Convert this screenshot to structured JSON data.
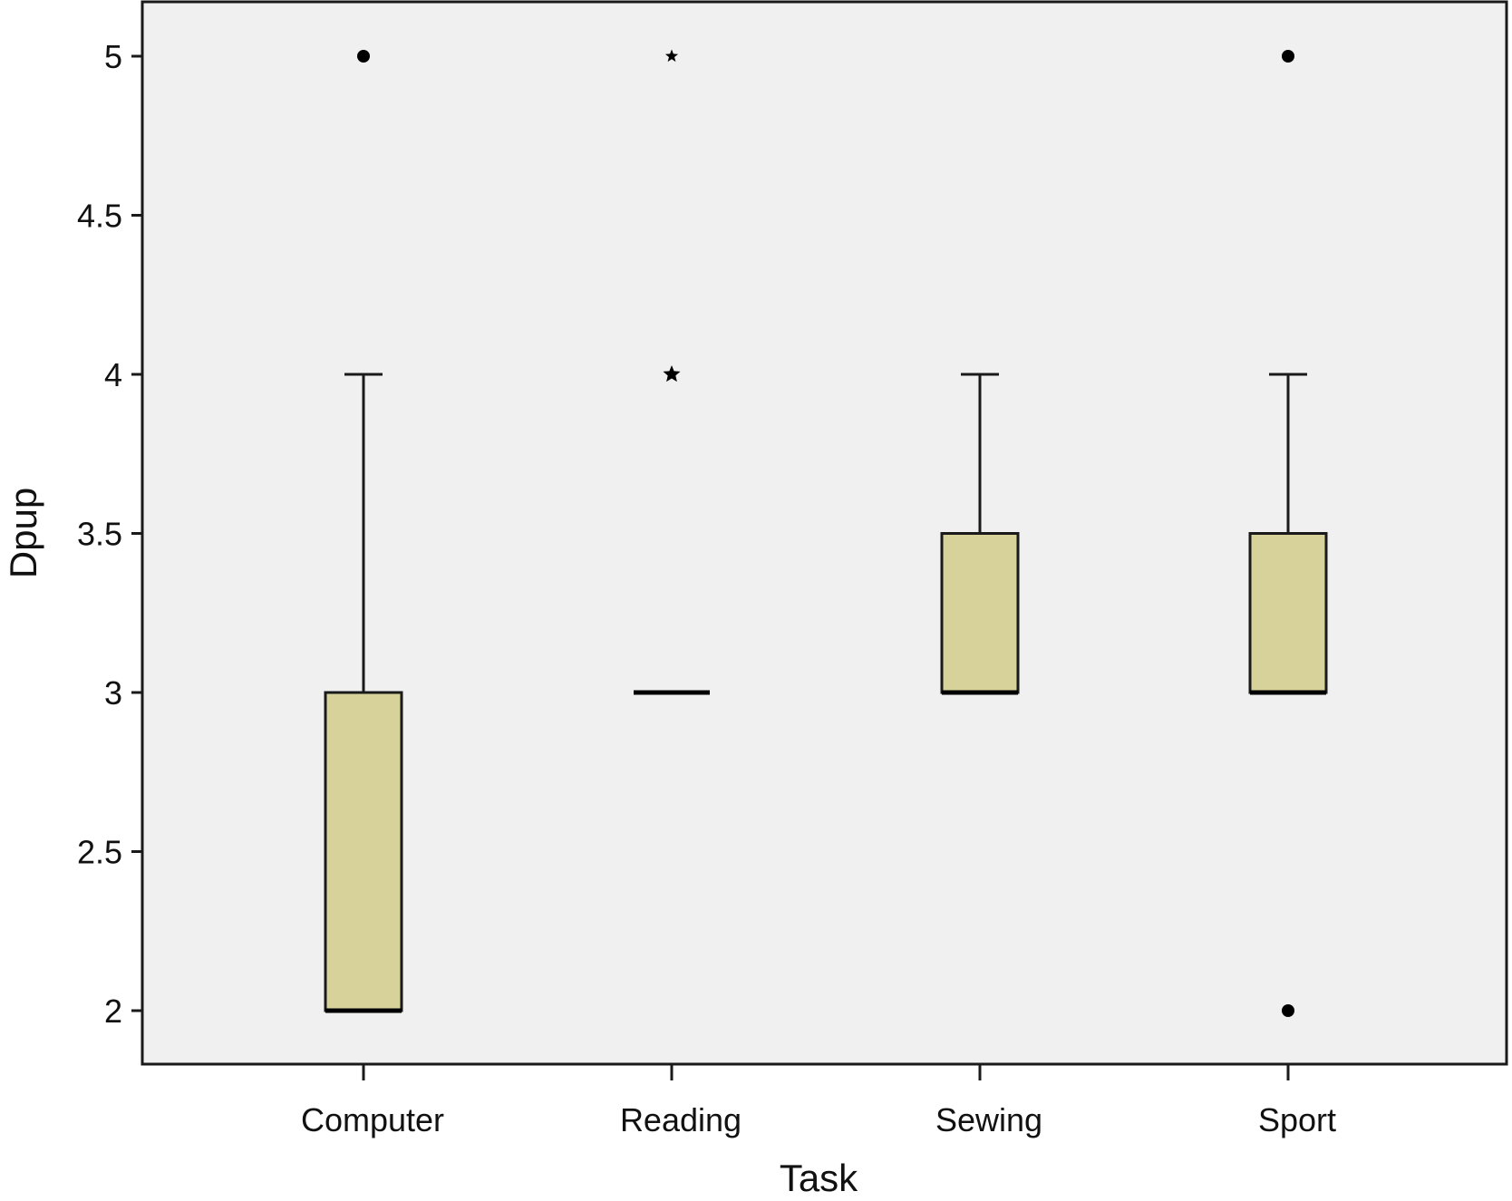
{
  "chart_data": {
    "type": "box",
    "xlabel": "Task",
    "ylabel": "Dpup",
    "ylim": [
      1.83,
      5.17
    ],
    "yticks": [
      2,
      2.5,
      3,
      3.5,
      4,
      4.5,
      5
    ],
    "ytick_labels": [
      "2",
      "2.5",
      "3",
      "3.5",
      "4",
      "4.5",
      "5"
    ],
    "grid": false,
    "categories": [
      "Computer",
      "Reading",
      "Sewing",
      "Sport"
    ],
    "boxes": [
      {
        "category": "Computer",
        "min": 2,
        "q1": 2,
        "median": 2,
        "q3": 3,
        "max": 4,
        "outliers": [
          {
            "value": 5,
            "marker": "circle"
          }
        ]
      },
      {
        "category": "Reading",
        "min": 3,
        "q1": 3,
        "median": 3,
        "q3": 3,
        "max": 3,
        "outliers": [
          {
            "value": 4,
            "marker": "star"
          },
          {
            "value": 5,
            "marker": "star"
          }
        ]
      },
      {
        "category": "Sewing",
        "min": 3,
        "q1": 3,
        "median": 3,
        "q3": 3.5,
        "max": 4,
        "outliers": []
      },
      {
        "category": "Sport",
        "min": 3,
        "q1": 3,
        "median": 3,
        "q3": 3.5,
        "max": 4,
        "outliers": [
          {
            "value": 5,
            "marker": "circle"
          },
          {
            "value": 2,
            "marker": "circle"
          }
        ]
      }
    ],
    "colors": {
      "box_fill": "#d6d29a",
      "plot_bg": "#f0f0f0",
      "stroke": "#1a1a1a"
    }
  }
}
